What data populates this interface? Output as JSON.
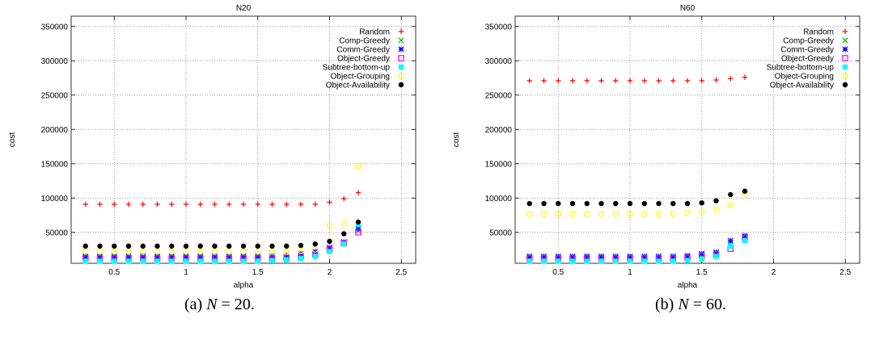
{
  "chart_data": [
    {
      "type": "scatter",
      "title": "N20",
      "xlabel": "alpha",
      "ylabel": "cost",
      "xlim": [
        0.2,
        2.6
      ],
      "ylim": [
        5000,
        365000
      ],
      "xticks": [
        0.5,
        1,
        1.5,
        2,
        2.5
      ],
      "xtick_labels": [
        "0.5",
        "1",
        "1.5",
        "2",
        "2.5"
      ],
      "yticks": [
        50000,
        100000,
        150000,
        200000,
        250000,
        300000,
        350000
      ],
      "ytick_labels": [
        "50000",
        "100000",
        "150000",
        "200000",
        "250000",
        "300000",
        "350000"
      ],
      "grid": true,
      "legend_position": "top-right",
      "x": [
        0.3,
        0.4,
        0.5,
        0.6,
        0.7,
        0.8,
        0.9,
        1.0,
        1.1,
        1.2,
        1.3,
        1.4,
        1.5,
        1.6,
        1.7,
        1.8,
        1.9,
        2.0,
        2.1,
        2.2
      ],
      "series": [
        {
          "name": "Random",
          "marker": "plus",
          "color": "#ff0000",
          "values": [
            91000,
            91000,
            91000,
            91000,
            91000,
            91000,
            91000,
            91000,
            91000,
            91000,
            91000,
            91000,
            91000,
            91000,
            91000,
            91000,
            91000,
            94000,
            99000,
            108000
          ]
        },
        {
          "name": "Comp-Greedy",
          "marker": "cross",
          "color": "#00c000",
          "values": [
            13000,
            13000,
            13000,
            13000,
            13000,
            13000,
            13000,
            13000,
            13000,
            13000,
            13000,
            13000,
            13000,
            13000,
            14000,
            16000,
            19000,
            26000,
            35000,
            52000
          ]
        },
        {
          "name": "Comm-Greedy",
          "marker": "star",
          "color": "#0000ff",
          "values": [
            15000,
            15000,
            15000,
            15000,
            15000,
            15000,
            15000,
            15000,
            15000,
            15000,
            15000,
            15000,
            15000,
            16000,
            17000,
            19000,
            22000,
            28000,
            36000,
            55000
          ]
        },
        {
          "name": "Object-Greedy",
          "marker": "square",
          "color": "#ff00ff",
          "values": [
            12000,
            12000,
            12000,
            12000,
            12000,
            12000,
            12000,
            12000,
            12000,
            12000,
            12000,
            12000,
            12000,
            12000,
            13000,
            15000,
            18000,
            25000,
            34000,
            50000
          ]
        },
        {
          "name": "Subtree-bottom-up",
          "marker": "filled-square",
          "color": "#00ffff",
          "values": [
            8000,
            8000,
            8000,
            8000,
            8000,
            8000,
            8000,
            8000,
            8000,
            8000,
            8000,
            8000,
            8000,
            9000,
            10000,
            12000,
            15000,
            22000,
            33000,
            62000
          ]
        },
        {
          "name": "Object-Grouping",
          "marker": "circle",
          "color": "#ffff00",
          "values": [
            22000,
            22000,
            22000,
            22000,
            22000,
            22000,
            22000,
            22000,
            22000,
            22000,
            22000,
            22000,
            22000,
            22000,
            22000,
            23000,
            25000,
            60000,
            63000,
            146000
          ]
        },
        {
          "name": "Object-Availability",
          "marker": "filled-circle",
          "color": "#000000",
          "values": [
            30000,
            30000,
            30000,
            30000,
            30000,
            30000,
            30000,
            30000,
            30000,
            30000,
            30000,
            30000,
            30000,
            30000,
            30000,
            31000,
            33000,
            37000,
            48000,
            65000
          ]
        }
      ]
    },
    {
      "type": "scatter",
      "title": "N60",
      "xlabel": "alpha",
      "ylabel": "cost",
      "xlim": [
        0.2,
        2.6
      ],
      "ylim": [
        5000,
        365000
      ],
      "xticks": [
        0.5,
        1,
        1.5,
        2,
        2.5
      ],
      "xtick_labels": [
        "0.5",
        "1",
        "1.5",
        "2",
        "2.5"
      ],
      "yticks": [
        50000,
        100000,
        150000,
        200000,
        250000,
        300000,
        350000
      ],
      "ytick_labels": [
        "50000",
        "100000",
        "150000",
        "200000",
        "250000",
        "300000",
        "350000"
      ],
      "grid": true,
      "legend_position": "top-right",
      "x": [
        0.3,
        0.4,
        0.5,
        0.6,
        0.7,
        0.8,
        0.9,
        1.0,
        1.1,
        1.2,
        1.3,
        1.4,
        1.5,
        1.6,
        1.7,
        1.8
      ],
      "series": [
        {
          "name": "Random",
          "marker": "plus",
          "color": "#ff0000",
          "values": [
            271000,
            271000,
            271000,
            271000,
            271000,
            271000,
            271000,
            271000,
            271000,
            271000,
            271000,
            271000,
            271000,
            272000,
            274000,
            276000
          ]
        },
        {
          "name": "Comp-Greedy",
          "marker": "cross",
          "color": "#00c000",
          "values": [
            13000,
            13000,
            13000,
            13000,
            13000,
            13000,
            13000,
            13000,
            13000,
            13000,
            13000,
            14000,
            17000,
            19000,
            35000,
            44000
          ]
        },
        {
          "name": "Comm-Greedy",
          "marker": "star",
          "color": "#0000ff",
          "values": [
            15000,
            15000,
            15000,
            15000,
            15000,
            15000,
            15000,
            15000,
            15000,
            15000,
            15000,
            16000,
            19000,
            21000,
            38000,
            45000
          ]
        },
        {
          "name": "Object-Greedy",
          "marker": "square",
          "color": "#ff00ff",
          "values": [
            12000,
            12000,
            12000,
            12000,
            12000,
            12000,
            12000,
            12000,
            12000,
            12000,
            12000,
            13000,
            16000,
            18000,
            26000,
            42000
          ]
        },
        {
          "name": "Subtree-bottom-up",
          "marker": "filled-square",
          "color": "#00ffff",
          "values": [
            8000,
            8000,
            8000,
            8000,
            8000,
            8000,
            8000,
            8000,
            8000,
            8000,
            8000,
            9000,
            11000,
            15000,
            30000,
            38000
          ]
        },
        {
          "name": "Object-Grouping",
          "marker": "circle",
          "color": "#ffff00",
          "values": [
            77000,
            77000,
            77000,
            77000,
            77000,
            77000,
            77000,
            77000,
            77000,
            77000,
            77000,
            78000,
            80000,
            83000,
            90000,
            108000
          ]
        },
        {
          "name": "Object-Availability",
          "marker": "filled-circle",
          "color": "#000000",
          "values": [
            92000,
            92000,
            92000,
            92000,
            92000,
            92000,
            92000,
            92000,
            92000,
            92000,
            92000,
            92000,
            93000,
            96000,
            105000,
            110000
          ]
        }
      ]
    }
  ],
  "captions": [
    {
      "prefix": "(a) ",
      "math": "N",
      "suffix": " = 20."
    },
    {
      "prefix": "(b) ",
      "math": "N",
      "suffix": " = 60."
    }
  ]
}
